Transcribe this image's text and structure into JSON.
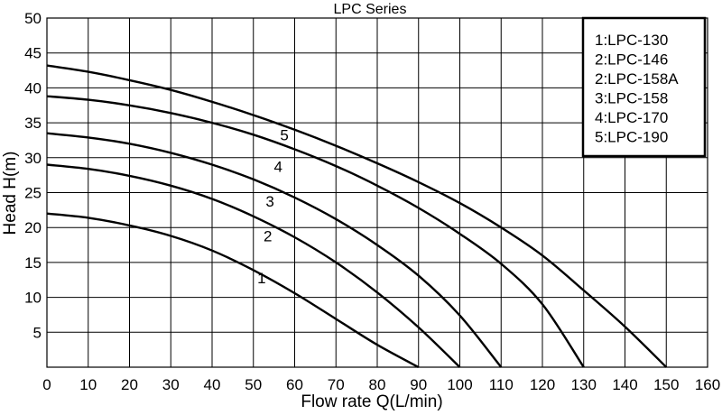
{
  "chart_data": {
    "type": "line",
    "title": "LPC Series",
    "xlabel": "Flow rate Q(L/min)",
    "ylabel": "Head H(m)",
    "xlim": [
      0,
      160
    ],
    "ylim": [
      0,
      50
    ],
    "xticks": [
      0,
      10,
      20,
      30,
      40,
      50,
      60,
      70,
      80,
      90,
      100,
      110,
      120,
      130,
      140,
      150,
      160
    ],
    "yticks": [
      5,
      10,
      15,
      20,
      25,
      30,
      35,
      40,
      45,
      50
    ],
    "grid": true,
    "legend_position": "top-right",
    "legend": [
      "1:LPC-130",
      "2:LPC-146",
      "2:LPC-158A",
      "3:LPC-158",
      "4:LPC-170",
      "5:LPC-190"
    ],
    "series": [
      {
        "name": "1",
        "x": [
          0,
          10,
          20,
          30,
          40,
          50,
          60,
          70,
          80,
          90
        ],
        "y": [
          22,
          21.4,
          20.3,
          18.8,
          16.7,
          13.9,
          10.6,
          6.9,
          3.2,
          0
        ]
      },
      {
        "name": "2",
        "x": [
          0,
          10,
          20,
          30,
          40,
          50,
          60,
          70,
          80,
          90,
          100
        ],
        "y": [
          29,
          28.4,
          27.4,
          26.0,
          24.1,
          21.6,
          18.6,
          15.0,
          10.7,
          5.7,
          0
        ]
      },
      {
        "name": "3",
        "x": [
          0,
          10,
          20,
          30,
          40,
          50,
          60,
          70,
          80,
          90,
          100,
          110
        ],
        "y": [
          33.5,
          32.9,
          32.0,
          30.7,
          29.0,
          26.9,
          24.3,
          21.2,
          17.5,
          13.1,
          7.4,
          0
        ]
      },
      {
        "name": "4",
        "x": [
          0,
          10,
          20,
          30,
          40,
          50,
          60,
          70,
          80,
          90,
          100,
          110,
          120,
          130
        ],
        "y": [
          38.8,
          38.3,
          37.5,
          36.4,
          35.0,
          33.3,
          31.2,
          28.8,
          26.0,
          22.8,
          19.1,
          14.8,
          9.0,
          0
        ]
      },
      {
        "name": "5",
        "x": [
          0,
          10,
          20,
          30,
          40,
          50,
          60,
          70,
          80,
          90,
          100,
          110,
          120,
          130,
          140,
          150
        ],
        "y": [
          43.2,
          42.3,
          41.1,
          39.7,
          38.0,
          36.1,
          34.0,
          31.7,
          29.2,
          26.5,
          23.5,
          20.0,
          16.0,
          11.0,
          5.8,
          0
        ]
      }
    ],
    "curve_labels": [
      {
        "text": "1",
        "x": 52,
        "y": 12
      },
      {
        "text": "2",
        "x": 53.5,
        "y": 18
      },
      {
        "text": "3",
        "x": 54,
        "y": 23
      },
      {
        "text": "4",
        "x": 56,
        "y": 28
      },
      {
        "text": "5",
        "x": 57.5,
        "y": 32.5
      }
    ]
  }
}
